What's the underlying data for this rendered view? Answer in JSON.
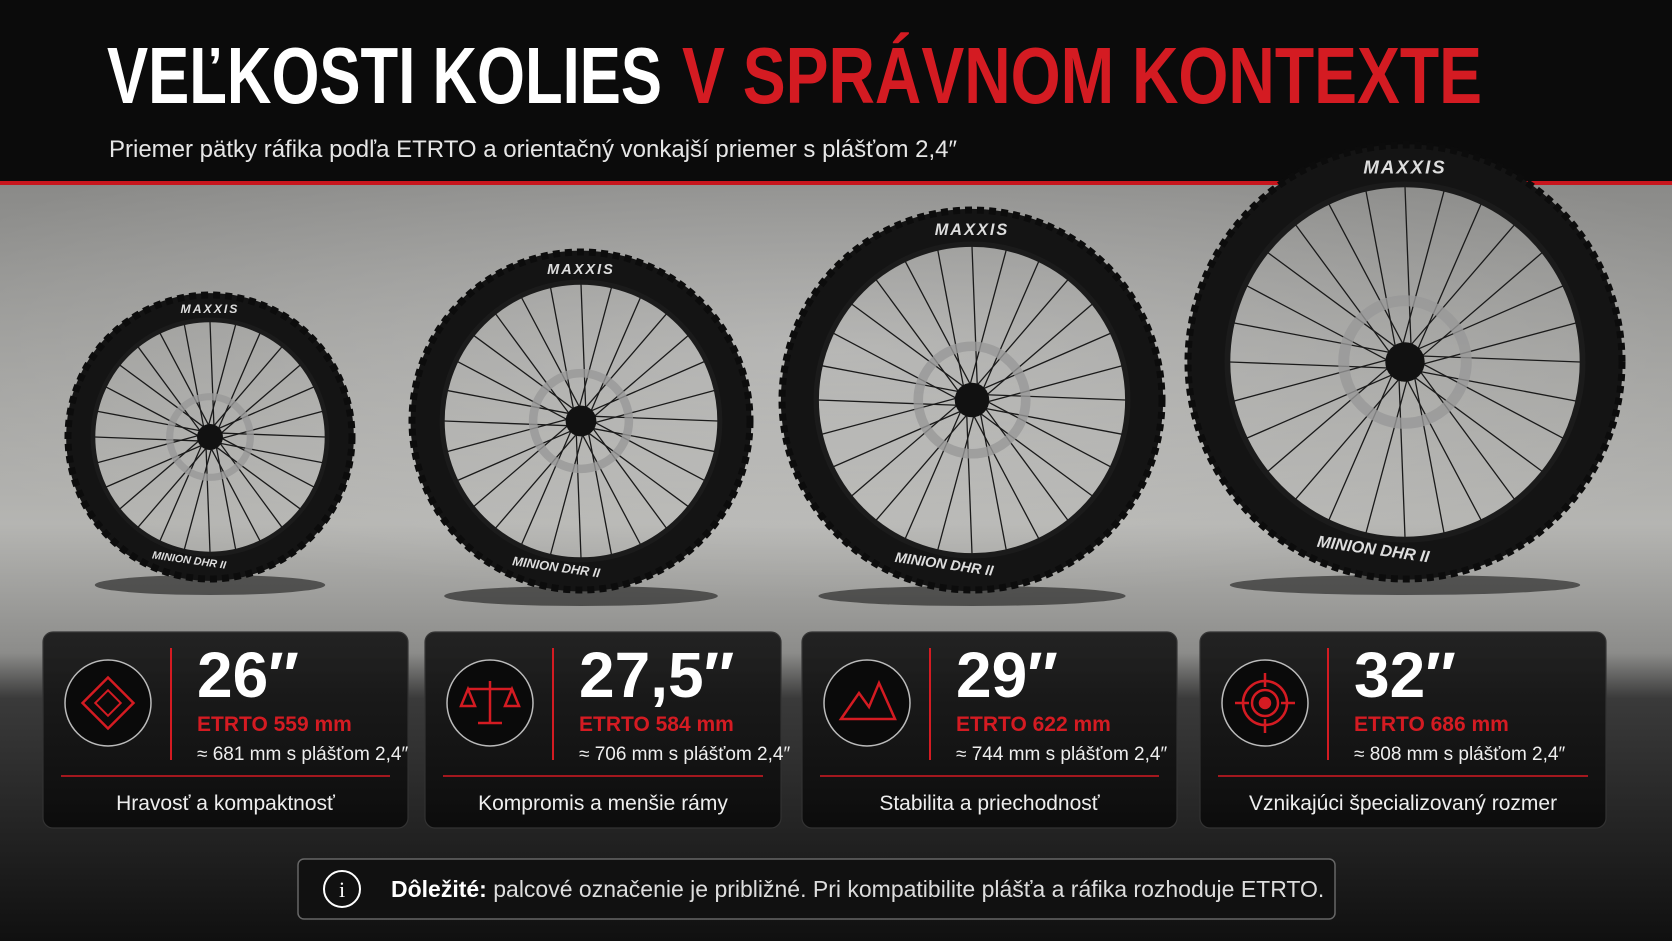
{
  "header": {
    "title_white": "VEĽKOSTI KOLIES",
    "title_red": "V SPRÁVNOM KONTEXTE",
    "subtitle": "Priemer pätky ráfika podľa ETRTO a orientačný vonkajší priemer s plášťom 2,4″"
  },
  "wheels": [
    {
      "brand": "MAXXIS",
      "model": "MINION DHR II"
    },
    {
      "brand": "MAXXIS",
      "model": "MINION DHR II"
    },
    {
      "brand": "MAXXIS",
      "model": "MINION DHR II"
    },
    {
      "brand": "MAXXIS",
      "model": "MINION DHR II"
    }
  ],
  "cards": [
    {
      "size": "26″",
      "etrto": "ETRTO 559 mm",
      "outer": "≈ 681 mm s plášťom 2,4″",
      "label": "Hravosť a kompaktnosť"
    },
    {
      "size": "27,5″",
      "etrto": "ETRTO 584 mm",
      "outer": "≈ 706 mm s plášťom 2,4″",
      "label": "Kompromis a menšie rámy"
    },
    {
      "size": "29″",
      "etrto": "ETRTO 622 mm",
      "outer": "≈ 744 mm s plášťom 2,4″",
      "label": "Stabilita a priechodnosť"
    },
    {
      "size": "32″",
      "etrto": "ETRTO 686 mm",
      "outer": "≈ 808 mm s plášťom 2,4″",
      "label": "Vznikajúci špecializovaný rozmer"
    }
  ],
  "note": {
    "bold": "Dôležité:",
    "text": "palcové označenie je približné. Pri kompatibilite plášťa a ráfika rozhoduje ETRTO."
  }
}
